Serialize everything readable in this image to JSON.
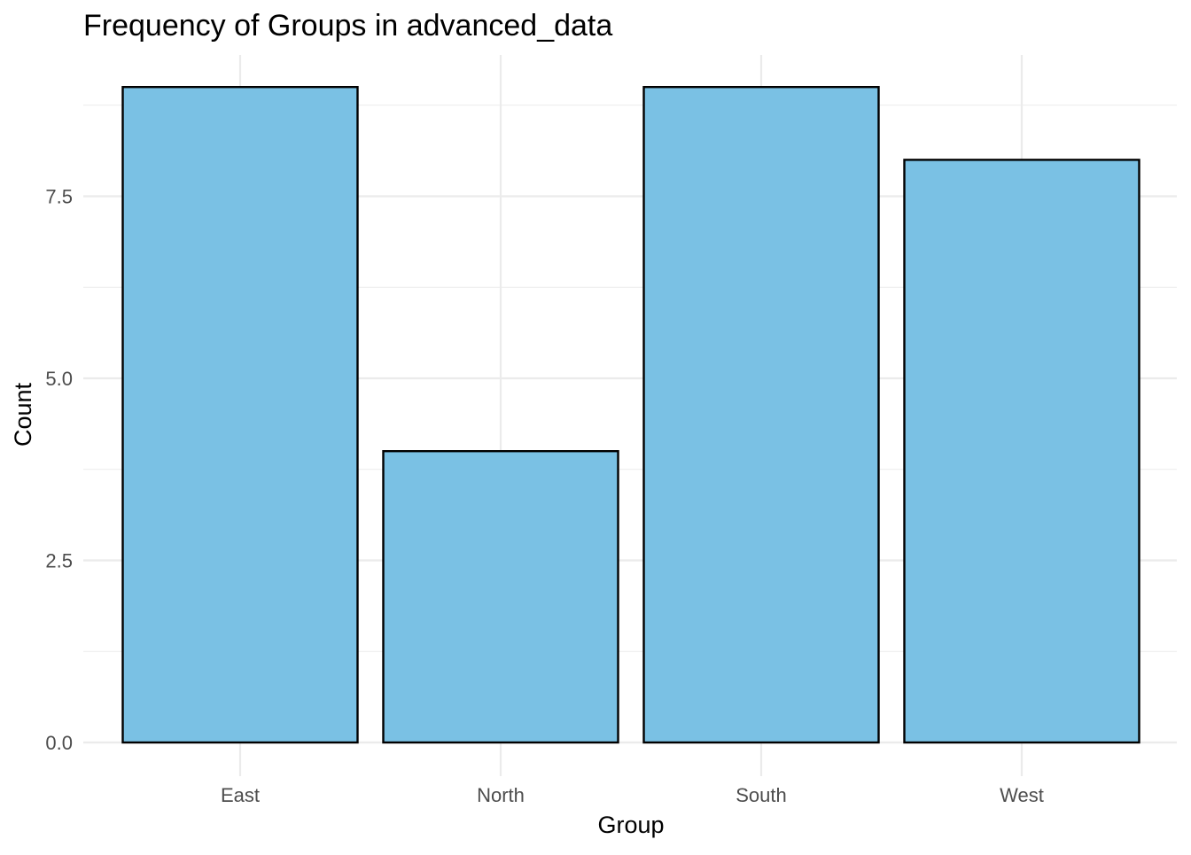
{
  "chart_data": {
    "type": "bar",
    "title": "Frequency of Groups in advanced_data",
    "xlabel": "Group",
    "ylabel": "Count",
    "categories": [
      "East",
      "North",
      "South",
      "West"
    ],
    "values": [
      9,
      4,
      9,
      8
    ],
    "ylim": [
      0,
      9
    ],
    "y_ticks": [
      0,
      2.5,
      5,
      7.5
    ],
    "y_tick_labels": [
      "0.0",
      "2.5",
      "5.0",
      "7.5"
    ],
    "bar_fill": "#7ac1e4",
    "bar_outline": "#000000",
    "grid": true,
    "legend": "none"
  }
}
